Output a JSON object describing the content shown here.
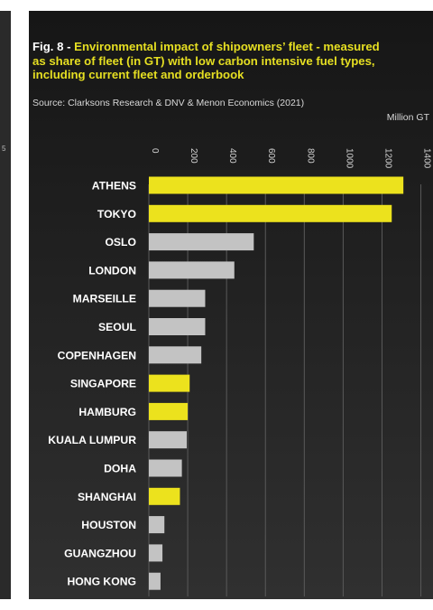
{
  "left_fragment": "5",
  "header": {
    "fig_label": "Fig. 8 -",
    "title": "Environmental impact of shipowners’ fleet - measured as share of fleet (in GT) with low carbon intensive fuel types, including current fleet and orderbook",
    "source": "Source: Clarksons Research & DNV & Menon Economics (2021)",
    "unit": "Million GT"
  },
  "colors": {
    "highlight": "#ece21d",
    "other": "#c3c3c3",
    "grid": "#5a5a5a",
    "label": "#ffffff",
    "tick": "#d0d0d0"
  },
  "chart_data": {
    "type": "bar",
    "orientation": "horizontal",
    "title": "Environmental impact of shipowners’ fleet - measured as share of fleet (in GT) with low carbon intensive fuel types, including current fleet and orderbook",
    "xlabel": "Million GT",
    "xlim": [
      0,
      1400
    ],
    "xticks": [
      0,
      200,
      400,
      600,
      800,
      1000,
      1200,
      1400
    ],
    "grid": true,
    "categories": [
      "ATHENS",
      "TOKYO",
      "OSLO",
      "LONDON",
      "MARSEILLE",
      "SEOUL",
      "COPENHAGEN",
      "SINGAPORE",
      "HAMBURG",
      "KUALA LUMPUR",
      "DOHA",
      "SHANGHAI",
      "HOUSTON",
      "GUANGZHOU",
      "HONG KONG"
    ],
    "values": [
      1310,
      1250,
      540,
      440,
      290,
      290,
      270,
      210,
      200,
      195,
      170,
      160,
      80,
      70,
      60
    ],
    "highlighted": [
      true,
      true,
      false,
      false,
      false,
      false,
      false,
      true,
      true,
      false,
      false,
      true,
      false,
      false,
      false
    ]
  }
}
